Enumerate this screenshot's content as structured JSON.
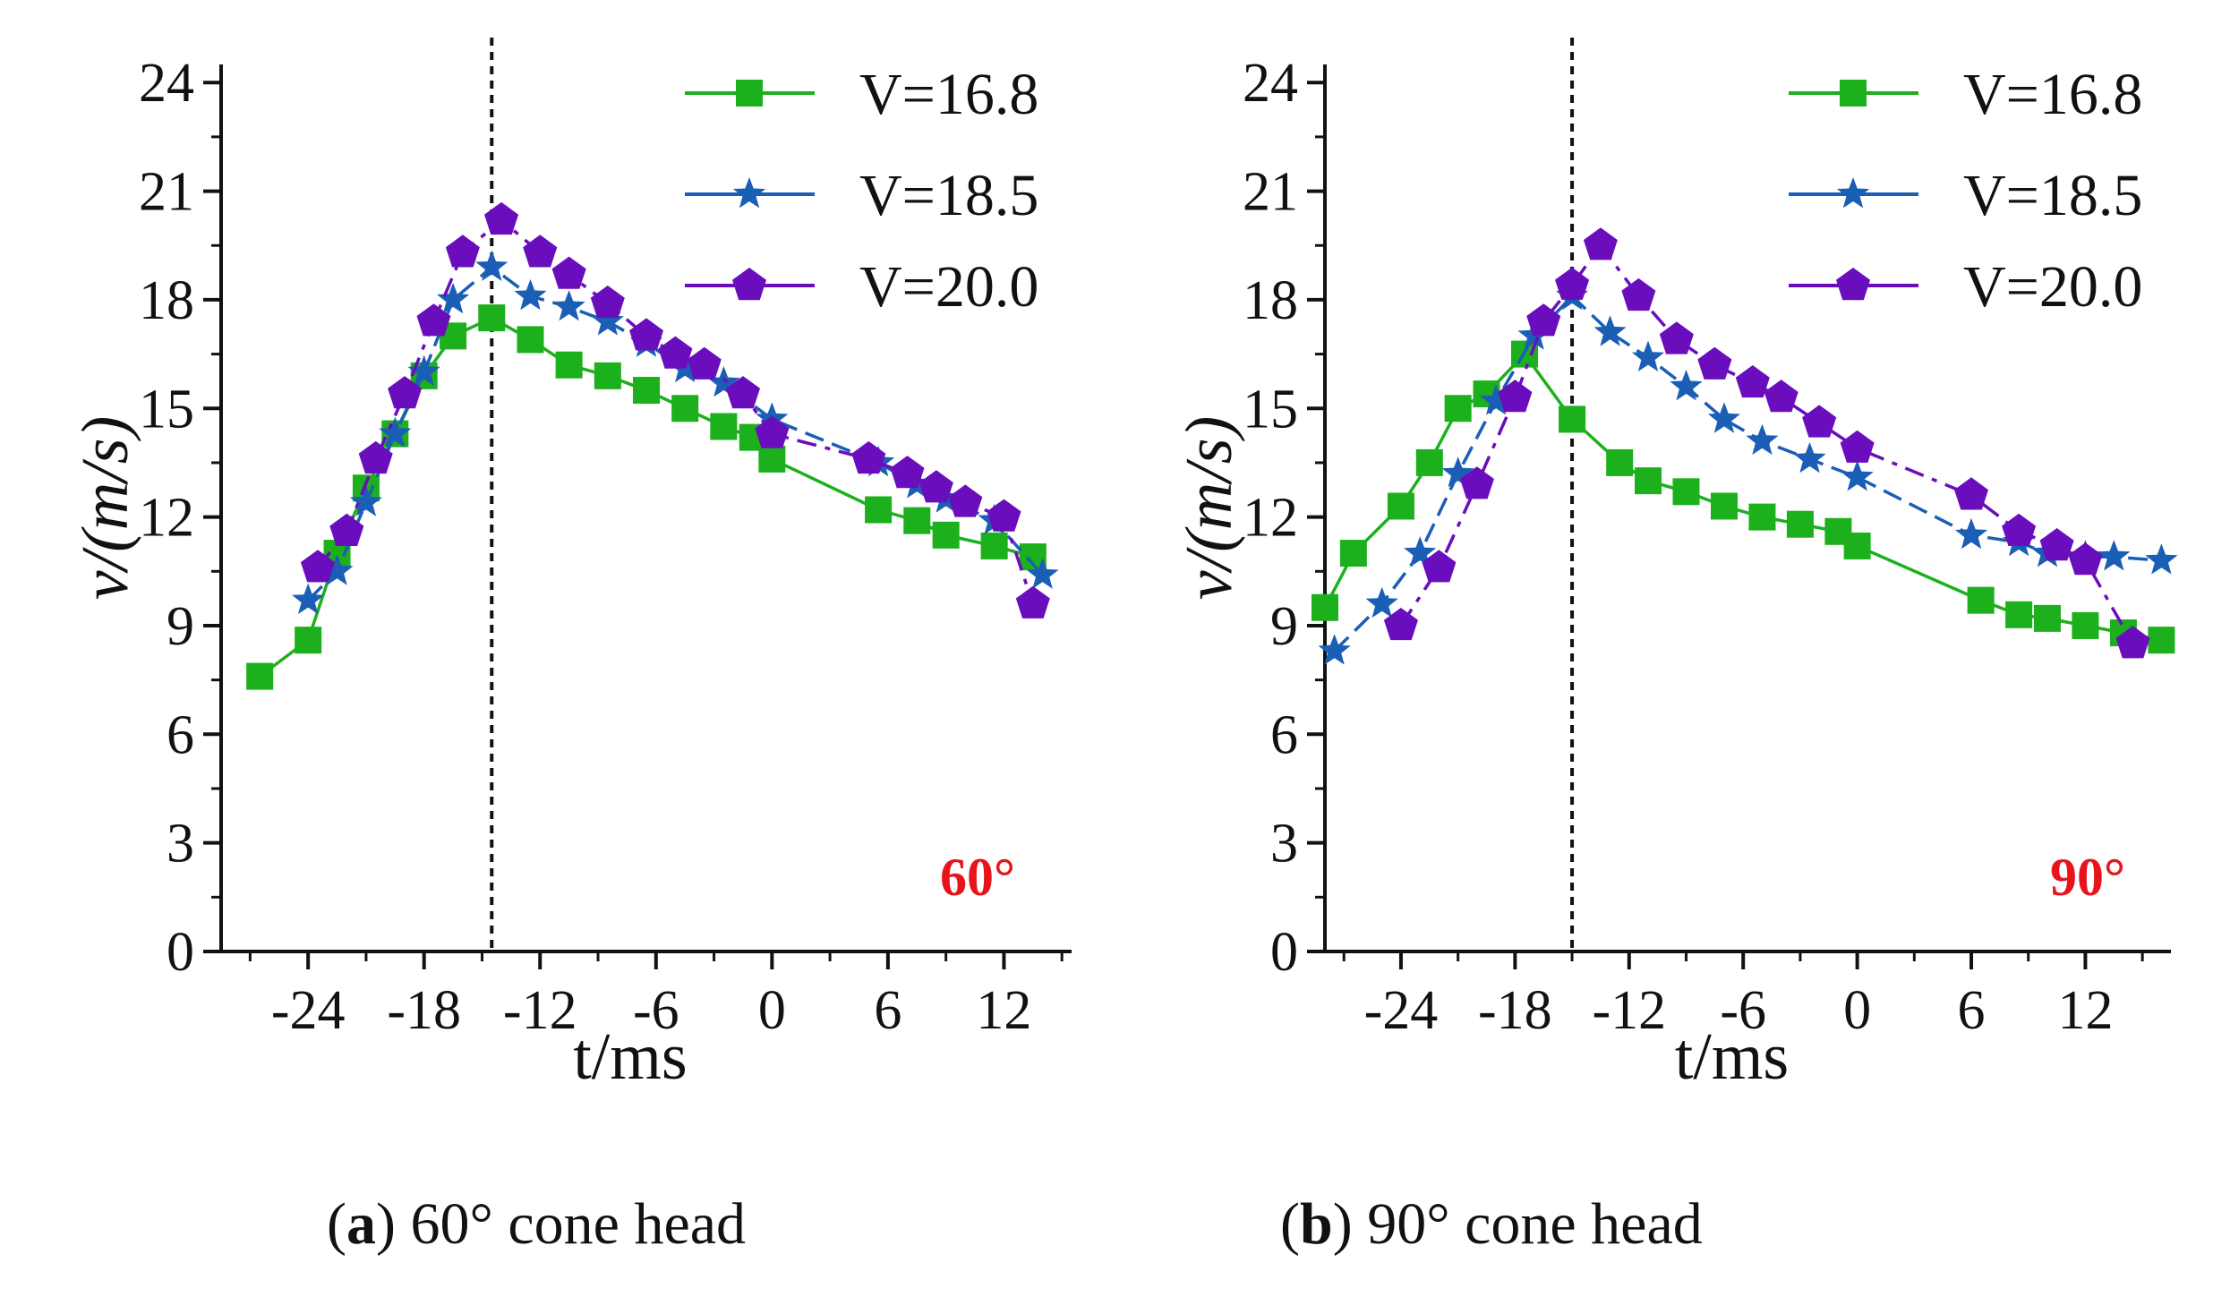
{
  "colors": {
    "s1": "#1cb01c",
    "s2": "#1b5eb5",
    "s3": "#6a0dbd",
    "angle": "#e8141c"
  },
  "chart_data": [
    {
      "type": "line",
      "panel": "a",
      "xlabel": "t/ms",
      "ylabel": "v/(m/s)",
      "xlim": [
        -28.5,
        15.5
      ],
      "ylim": [
        0,
        24.5
      ],
      "xticks": [
        -24,
        -18,
        -12,
        -6,
        0,
        6,
        12
      ],
      "xtick_labels": [
        "-24",
        "-18",
        "-12",
        "-6",
        "0",
        "6",
        "12"
      ],
      "yticks": [
        0,
        3,
        6,
        9,
        12,
        15,
        18,
        21,
        24
      ],
      "ytick_labels": [
        "0",
        "3",
        "6",
        "9",
        "12",
        "15",
        "18",
        "21",
        "24"
      ],
      "vline": -14.5,
      "annotation": "60°",
      "legend_position": "top-right",
      "series": [
        {
          "name": "V=16.8",
          "marker": "square",
          "color": "#1cb01c",
          "x": [
            -26.5,
            -24,
            -22.5,
            -21,
            -19.5,
            -18,
            -16.5,
            -14.5,
            -12.5,
            -10.5,
            -8.5,
            -6.5,
            -4.5,
            -2.5,
            -1,
            0,
            5.5,
            7.5,
            9,
            11.5,
            13.5
          ],
          "y": [
            7.6,
            8.6,
            11.0,
            12.8,
            14.3,
            15.9,
            17.0,
            17.5,
            16.9,
            16.2,
            15.9,
            15.5,
            15.0,
            14.5,
            14.2,
            13.6,
            12.2,
            11.9,
            11.5,
            11.2,
            10.9
          ]
        },
        {
          "name": "V=18.5",
          "marker": "star",
          "color": "#1b5eb5",
          "x": [
            -24,
            -22.5,
            -21,
            -19.5,
            -18,
            -16.5,
            -14.5,
            -12.5,
            -10.5,
            -8.5,
            -6.5,
            -4.5,
            -2.5,
            0,
            5.5,
            7.5,
            9,
            11.5,
            14
          ],
          "y": [
            9.7,
            10.5,
            12.4,
            14.3,
            16.0,
            18.0,
            18.9,
            18.1,
            17.8,
            17.4,
            16.8,
            16.1,
            15.7,
            14.7,
            13.5,
            12.9,
            12.5,
            11.9,
            10.4
          ]
        },
        {
          "name": "V=20.0",
          "marker": "pentagon",
          "color": "#6a0dbd",
          "x": [
            -23.5,
            -22,
            -20.5,
            -19,
            -17.5,
            -16,
            -14,
            -12,
            -10.5,
            -8.5,
            -6.5,
            -5,
            -3.5,
            -1.5,
            0,
            5,
            7,
            8.5,
            10,
            12,
            13.5
          ],
          "y": [
            10.6,
            11.6,
            13.6,
            15.4,
            17.4,
            19.3,
            20.2,
            19.3,
            18.7,
            17.9,
            17.0,
            16.5,
            16.2,
            15.4,
            14.3,
            13.6,
            13.2,
            12.8,
            12.4,
            12.0,
            9.6
          ]
        }
      ]
    },
    {
      "type": "line",
      "panel": "b",
      "xlabel": "t/ms",
      "ylabel": "v/(m/s)",
      "xlim": [
        -28,
        16.5
      ],
      "ylim": [
        0,
        24.5
      ],
      "xticks": [
        -24,
        -18,
        -12,
        -6,
        0,
        6,
        12
      ],
      "xtick_labels": [
        "-24",
        "-18",
        "-12",
        "-6",
        "0",
        "6",
        "12"
      ],
      "yticks": [
        0,
        3,
        6,
        9,
        12,
        15,
        18,
        21,
        24
      ],
      "ytick_labels": [
        "0",
        "3",
        "6",
        "9",
        "12",
        "15",
        "18",
        "21",
        "24"
      ],
      "vline": -15,
      "annotation": "90°",
      "legend_position": "top-right",
      "series": [
        {
          "name": "V=16.8",
          "marker": "square",
          "color": "#1cb01c",
          "x": [
            -28,
            -26.5,
            -24,
            -22.5,
            -21,
            -19.5,
            -17.5,
            -15,
            -12.5,
            -11,
            -9,
            -7,
            -5,
            -3,
            -1,
            0,
            6.5,
            8.5,
            10,
            12,
            14,
            16
          ],
          "y": [
            9.5,
            11.0,
            12.3,
            13.5,
            15.0,
            15.4,
            16.5,
            14.7,
            13.5,
            13.0,
            12.7,
            12.3,
            12.0,
            11.8,
            11.6,
            11.2,
            9.7,
            9.3,
            9.2,
            9.0,
            8.8,
            8.6
          ]
        },
        {
          "name": "V=18.5",
          "marker": "star",
          "color": "#1b5eb5",
          "x": [
            -27.5,
            -25,
            -23,
            -21,
            -19,
            -17,
            -15,
            -13,
            -11,
            -9,
            -7,
            -5,
            -2.5,
            0,
            6,
            8.5,
            10,
            12,
            13.5,
            16
          ],
          "y": [
            8.3,
            9.6,
            11.0,
            13.2,
            15.2,
            17.0,
            18.1,
            17.1,
            16.4,
            15.6,
            14.7,
            14.1,
            13.6,
            13.1,
            11.5,
            11.3,
            11.0,
            10.9,
            10.9,
            10.8
          ]
        },
        {
          "name": "V=20.0",
          "marker": "pentagon",
          "color": "#6a0dbd",
          "x": [
            -24,
            -22,
            -20,
            -18,
            -16.5,
            -15,
            -13.5,
            -11.5,
            -9.5,
            -7.5,
            -5.5,
            -4,
            -2,
            0,
            6,
            8.5,
            10.5,
            12,
            14.5
          ],
          "y": [
            9.0,
            10.6,
            12.9,
            15.3,
            17.4,
            18.4,
            19.5,
            18.1,
            16.9,
            16.2,
            15.7,
            15.3,
            14.6,
            13.9,
            12.6,
            11.6,
            11.2,
            10.8,
            8.5
          ]
        }
      ]
    }
  ],
  "captions": [
    {
      "letter": "a",
      "text": " 60° cone head"
    },
    {
      "letter": "b",
      "text": " 90° cone head"
    }
  ]
}
